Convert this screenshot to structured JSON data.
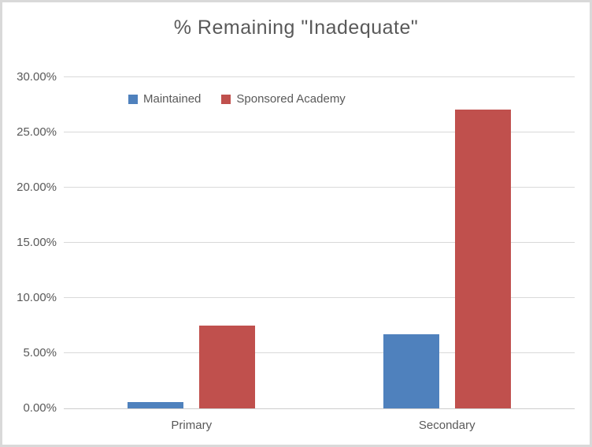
{
  "chart_data": {
    "type": "bar",
    "title": "% Remaining \"Inadequate\"",
    "categories": [
      "Primary",
      "Secondary"
    ],
    "series": [
      {
        "name": "Maintained",
        "color": "#4F81BD",
        "values": [
          0.6,
          6.7
        ]
      },
      {
        "name": "Sponsored Academy",
        "color": "#C0504D",
        "values": [
          7.5,
          27.1
        ]
      }
    ],
    "ylim": [
      0,
      30
    ],
    "ytick_step": 5,
    "yticks": [
      {
        "value": 0,
        "label": "0.00%"
      },
      {
        "value": 5,
        "label": "5.00%"
      },
      {
        "value": 10,
        "label": "10.00%"
      },
      {
        "value": 15,
        "label": "15.00%"
      },
      {
        "value": 20,
        "label": "20.00%"
      },
      {
        "value": 25,
        "label": "25.00%"
      },
      {
        "value": 30,
        "label": "30.00%"
      }
    ],
    "value_format": "0.00%",
    "grid": true,
    "legend_position": "top",
    "colors": {
      "text": "#595959",
      "gridline": "#d9d9d9",
      "axis_line": "#cdcdcd",
      "background": "#ffffff",
      "frame_border": "#d9d9d9"
    }
  }
}
